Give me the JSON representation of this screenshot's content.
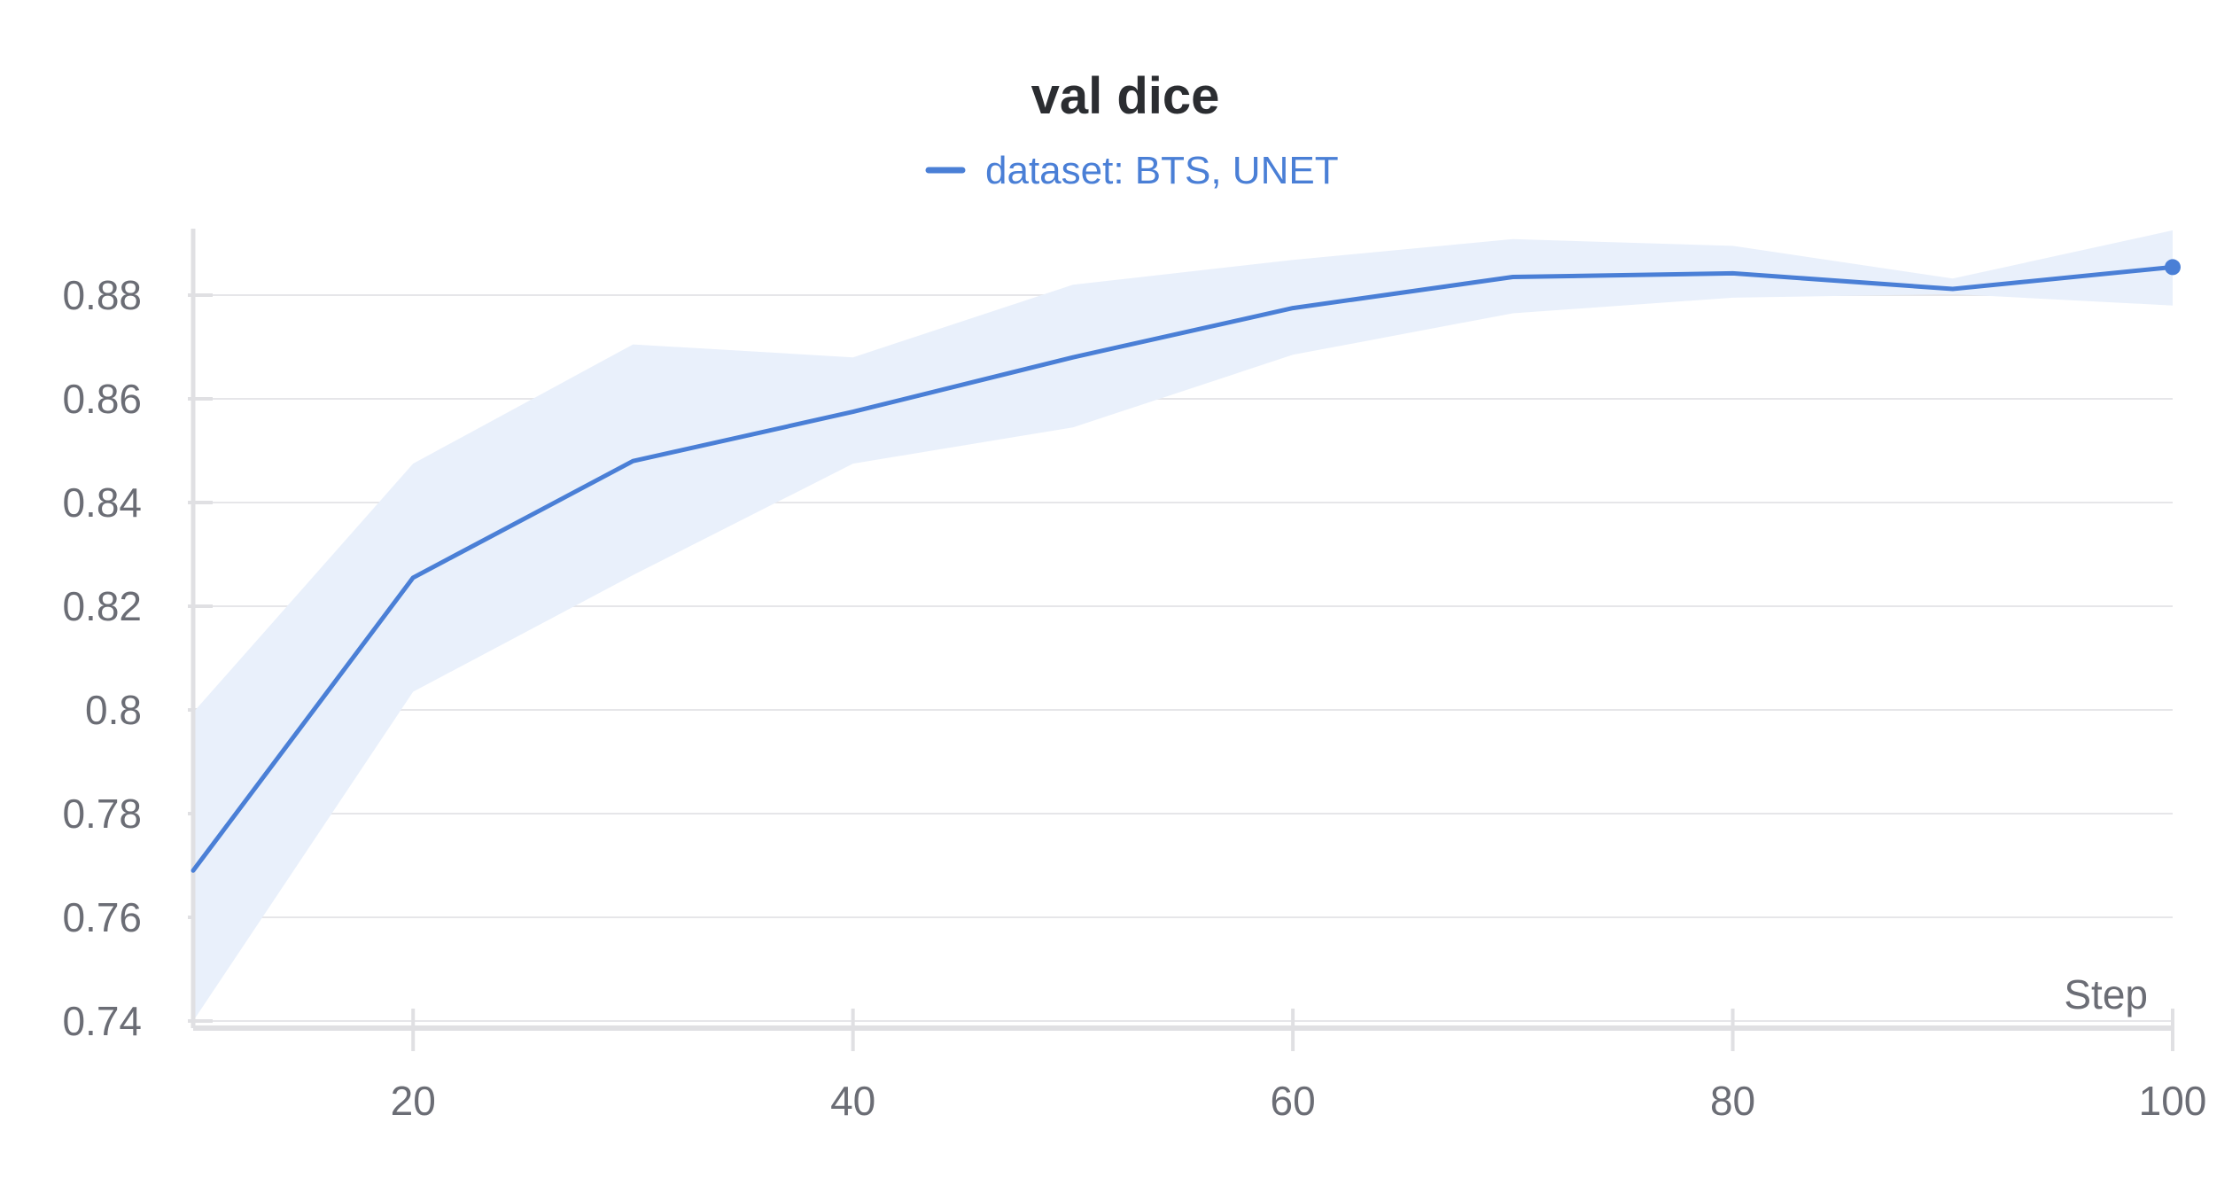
{
  "chart_data": {
    "type": "line",
    "title": "val dice",
    "xlabel": "Step",
    "ylabel": "",
    "xlim": [
      10,
      100
    ],
    "ylim": [
      0.74,
      0.89
    ],
    "x_ticks": [
      20,
      40,
      60,
      80,
      100
    ],
    "y_ticks": [
      0.74,
      0.76,
      0.78,
      0.8,
      0.82,
      0.84,
      0.86,
      0.88
    ],
    "y_tick_labels": [
      "0.74",
      "0.76",
      "0.78",
      "0.8",
      "0.82",
      "0.84",
      "0.86",
      "0.88"
    ],
    "x_tick_labels": [
      "20",
      "40",
      "60",
      "80",
      "100"
    ],
    "grid": true,
    "legend_position": "top-center",
    "colors": {
      "line": "#4a7fd6",
      "band": "#e9f0fb",
      "grid": "#e6e6e9",
      "axis": "#e0e0e3"
    },
    "series": [
      {
        "name": "dataset: BTS, UNET",
        "x": [
          10,
          20,
          30,
          40,
          50,
          60,
          70,
          80,
          90,
          100
        ],
        "values": [
          0.769,
          0.8255,
          0.848,
          0.8575,
          0.868,
          0.8775,
          0.8835,
          0.8842,
          0.8812,
          0.8854
        ],
        "upper": [
          0.7995,
          0.8475,
          0.8705,
          0.868,
          0.882,
          0.8868,
          0.8908,
          0.8895,
          0.8832,
          0.8925
        ],
        "lower": [
          0.74,
          0.8035,
          0.826,
          0.8475,
          0.8545,
          0.8685,
          0.8765,
          0.8795,
          0.8802,
          0.878
        ]
      }
    ]
  }
}
